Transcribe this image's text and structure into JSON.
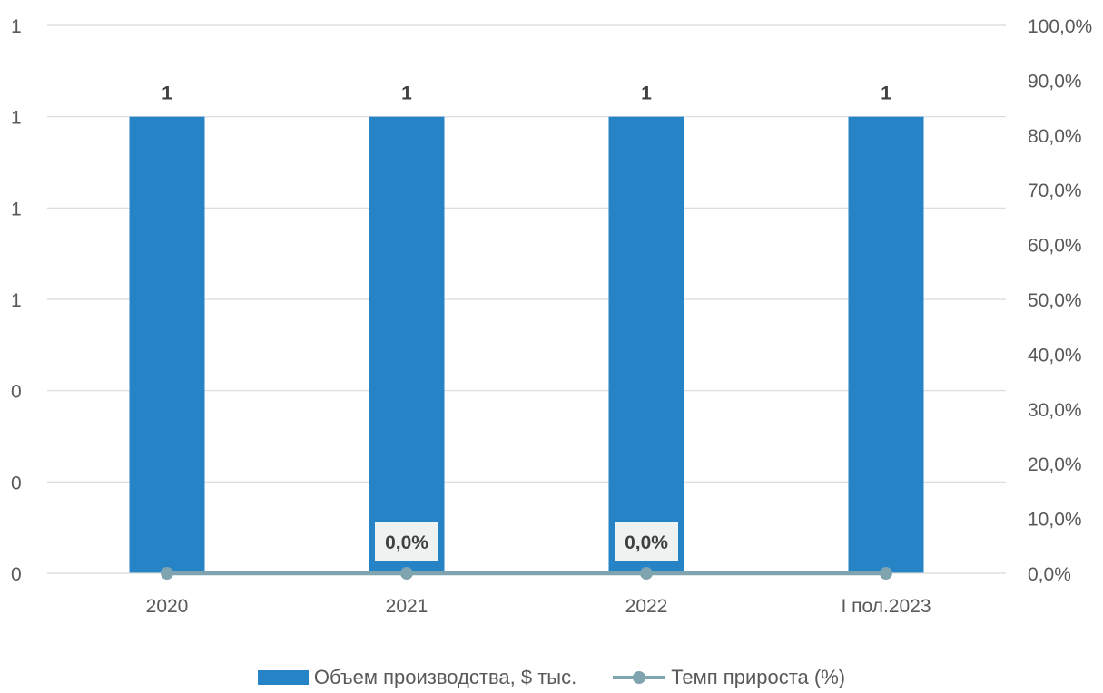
{
  "colors": {
    "bar": "#2683C6",
    "line": "#7FA4B0",
    "grid": "#D9D9D9",
    "axis_text": "#595959",
    "label_text": "#404040",
    "label_box": "#EEF3F1"
  },
  "chart_data": {
    "type": "bar",
    "categories": [
      "2020",
      "2021",
      "2022",
      "I пол.2023"
    ],
    "series": [
      {
        "name": "Объем производства, $ тыс.",
        "type": "bar",
        "axis": "left",
        "values": [
          1,
          1,
          1,
          1
        ],
        "data_labels": [
          "1",
          "1",
          "1",
          "1"
        ]
      },
      {
        "name": "Темп прироста (%)",
        "type": "line",
        "axis": "right",
        "values": [
          0,
          0,
          0,
          0
        ],
        "data_labels": [
          null,
          "0,0%",
          "0,0%",
          null
        ]
      }
    ],
    "y_left_ticks": [
      "0",
      "0",
      "0",
      "1",
      "1",
      "1",
      "1"
    ],
    "y_right_ticks": [
      "0,0%",
      "10,0%",
      "20,0%",
      "30,0%",
      "40,0%",
      "50,0%",
      "60,0%",
      "70,0%",
      "80,0%",
      "90,0%",
      "100,0%"
    ],
    "ylim_left": [
      0,
      1.2
    ],
    "ylim_right": [
      0,
      1
    ],
    "grid": true,
    "legend_position": "bottom"
  }
}
